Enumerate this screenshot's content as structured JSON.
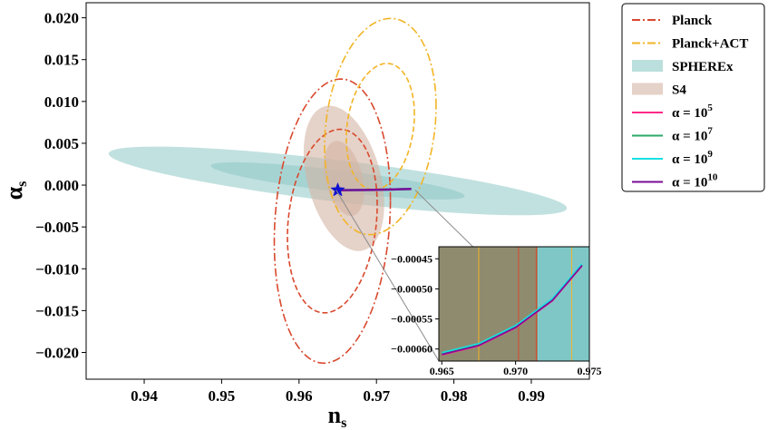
{
  "chart_data": {
    "type": "line",
    "xlabel": "n",
    "xlabel_sub": "s",
    "ylabel": "α",
    "ylabel_sub": "s",
    "xlim": [
      0.9325,
      0.9975
    ],
    "ylim": [
      -0.0232,
      0.0218
    ],
    "xticks": [
      "0.94",
      "0.95",
      "0.96",
      "0.97",
      "0.98",
      "0.99"
    ],
    "xtick_values": [
      0.94,
      0.95,
      0.96,
      0.97,
      0.98,
      0.99
    ],
    "yticks": [
      "0.020",
      "0.015",
      "0.010",
      "0.005",
      "0.000",
      "−0.005",
      "−0.010",
      "−0.015",
      "−0.020"
    ],
    "ytick_values": [
      0.02,
      0.015,
      0.01,
      0.005,
      0.0,
      -0.005,
      -0.01,
      -0.015,
      -0.02
    ],
    "legend_position": "outside-right",
    "legend": [
      {
        "label": "Planck",
        "kind": "line",
        "color": "#d9492e",
        "dash": "dashdot"
      },
      {
        "label": "Planck+ACT",
        "kind": "line",
        "color": "#f2b526",
        "dash": "dashdot"
      },
      {
        "label": "SPHEREx",
        "kind": "patch",
        "color": "#8ec9c6"
      },
      {
        "label": "S4",
        "kind": "patch",
        "color": "#d3b4a4"
      },
      {
        "label": "α = 10",
        "sup": "5",
        "kind": "line",
        "color": "#ff2a8a",
        "dash": "solid"
      },
      {
        "label": "α = 10",
        "sup": "7",
        "kind": "line",
        "color": "#2ea86a",
        "dash": "solid"
      },
      {
        "label": "α = 10",
        "sup": "9",
        "kind": "line",
        "color": "#17e0e0",
        "dash": "solid"
      },
      {
        "label": "α = 10",
        "sup": "10",
        "kind": "line",
        "color": "#7a0d97",
        "dash": "solid"
      }
    ],
    "contours": [
      {
        "name": "SPHEREx",
        "level": "outer",
        "center": [
          0.965,
          0.0005
        ],
        "semi_axes": [
          0.0296,
          0.0025
        ],
        "slope": -0.11,
        "fill": "#8ec9c6",
        "opacity": 0.55
      },
      {
        "name": "SPHEREx",
        "level": "inner",
        "center": [
          0.965,
          0.0005
        ],
        "semi_axes": [
          0.0164,
          0.0013
        ],
        "slope": -0.11,
        "fill": "#8ec9c6",
        "opacity": 0.55
      },
      {
        "name": "S4",
        "level": "outer",
        "center": [
          0.9658,
          0.0008
        ],
        "semi_axes": [
          0.0052,
          0.0081
        ],
        "slope": -0.6,
        "fill": "#d3b4a4",
        "opacity": 0.6
      },
      {
        "name": "S4",
        "level": "inner",
        "center": [
          0.9658,
          0.0008
        ],
        "semi_axes": [
          0.0026,
          0.0042
        ],
        "slope": -0.6,
        "fill": "#d3b4a4",
        "opacity": 0.6
      },
      {
        "name": "Planck",
        "level": "outer",
        "center": [
          0.9643,
          -0.0043
        ],
        "semi_axes": [
          0.0075,
          0.0168
        ],
        "slope": 0.33,
        "stroke": "#d9492e",
        "dash": "dashdot"
      },
      {
        "name": "Planck",
        "level": "inner",
        "center": [
          0.9643,
          -0.0043
        ],
        "semi_axes": [
          0.0058,
          0.0108
        ],
        "slope": 0.33,
        "stroke": "#d9492e",
        "dash": "dashed"
      },
      {
        "name": "Planck+ACT",
        "level": "outer",
        "center": [
          0.9705,
          0.007
        ],
        "semi_axes": [
          0.0072,
          0.0127
        ],
        "slope": 0.33,
        "stroke": "#f2b526",
        "dash": "dashdot"
      },
      {
        "name": "Planck+ACT",
        "level": "inner",
        "center": [
          0.9705,
          0.007
        ],
        "semi_axes": [
          0.0044,
          0.0074
        ],
        "slope": 0.33,
        "stroke": "#f2b526",
        "dash": "dashed"
      }
    ],
    "series": [
      {
        "name": "α = 10^5",
        "color": "#ff2a8a",
        "x": [
          0.965,
          0.9675,
          0.97,
          0.9725,
          0.9745
        ],
        "y": [
          -0.00061,
          -0.000595,
          -0.000565,
          -0.00052,
          -0.000462
        ]
      },
      {
        "name": "α = 10^7",
        "color": "#2ea86a",
        "x": [
          0.965,
          0.9675,
          0.97,
          0.9725,
          0.9745
        ],
        "y": [
          -0.000608,
          -0.000593,
          -0.000563,
          -0.000518,
          -0.00046
        ]
      },
      {
        "name": "α = 10^9",
        "color": "#17e0e0",
        "x": [
          0.965,
          0.9675,
          0.97,
          0.9725,
          0.9745
        ],
        "y": [
          -0.000606,
          -0.000591,
          -0.000561,
          -0.000516,
          -0.000458
        ]
      },
      {
        "name": "α = 10^10",
        "color": "#7a0d97",
        "x": [
          0.965,
          0.9675,
          0.97,
          0.9725,
          0.9745
        ],
        "y": [
          -0.000609,
          -0.000594,
          -0.000564,
          -0.000519,
          -0.000461
        ]
      }
    ],
    "marker": {
      "shape": "star",
      "x": 0.965,
      "y": -0.0006,
      "color": "#1010d0"
    },
    "inset": {
      "xlim": [
        0.9648,
        0.975
      ],
      "ylim": [
        -0.00062,
        -0.00043
      ],
      "xticks": [
        "0.965",
        "0.970",
        "0.975"
      ],
      "xtick_values": [
        0.965,
        0.97,
        0.975
      ],
      "yticks": [
        "−0.00045",
        "−0.00050",
        "−0.00055",
        "−0.00060"
      ],
      "ytick_values": [
        -0.00045,
        -0.0005,
        -0.00055,
        -0.0006
      ],
      "bands": [
        {
          "x0": 0.9648,
          "x1": 0.9715,
          "color": "#8f8b6f"
        },
        {
          "x0": 0.9715,
          "x1": 0.975,
          "color": "#7fc7c7"
        }
      ],
      "vlines": [
        {
          "x": 0.9675,
          "color": "#f2b526"
        },
        {
          "x": 0.9702,
          "color": "#d9492e"
        },
        {
          "x": 0.9714,
          "color": "#d9492e"
        },
        {
          "x": 0.9738,
          "color": "#f2b526"
        }
      ]
    }
  }
}
